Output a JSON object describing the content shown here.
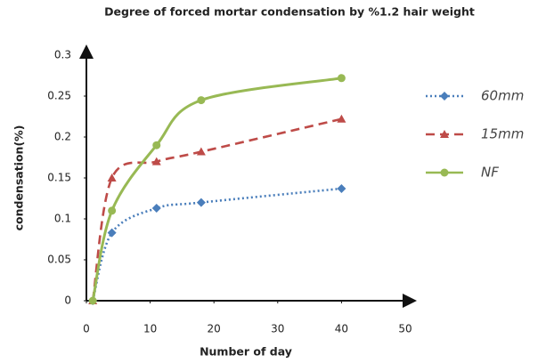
{
  "chart_data": {
    "type": "line",
    "title": "Degree of forced mortar condensation by %1.2 hair weight",
    "x_label": "Number of day",
    "y_label": "condensation(%)",
    "x": [
      1,
      4,
      11,
      18,
      40
    ],
    "series": [
      {
        "name": "60mm",
        "color": "#4a7ebb",
        "dash": "dotted",
        "marker": "diamond",
        "values": [
          0,
          0.083,
          0.113,
          0.12,
          0.137
        ]
      },
      {
        "name": "15mm",
        "color": "#be4b48",
        "dash": "dashed",
        "marker": "triangle",
        "values": [
          0,
          0.15,
          0.17,
          0.182,
          0.222
        ]
      },
      {
        "name": "NF",
        "color": "#98b954",
        "dash": "solid",
        "marker": "circle",
        "values": [
          0,
          0.11,
          0.19,
          0.245,
          0.272
        ]
      }
    ],
    "xlim": [
      0,
      50
    ],
    "xticks": [
      0,
      10,
      20,
      30,
      40,
      50
    ],
    "ylim": [
      0,
      0.3
    ],
    "yticks": [
      0,
      0.05,
      0.1,
      0.15,
      0.2,
      0.25,
      0.3
    ],
    "grid": false,
    "legend": "right"
  }
}
